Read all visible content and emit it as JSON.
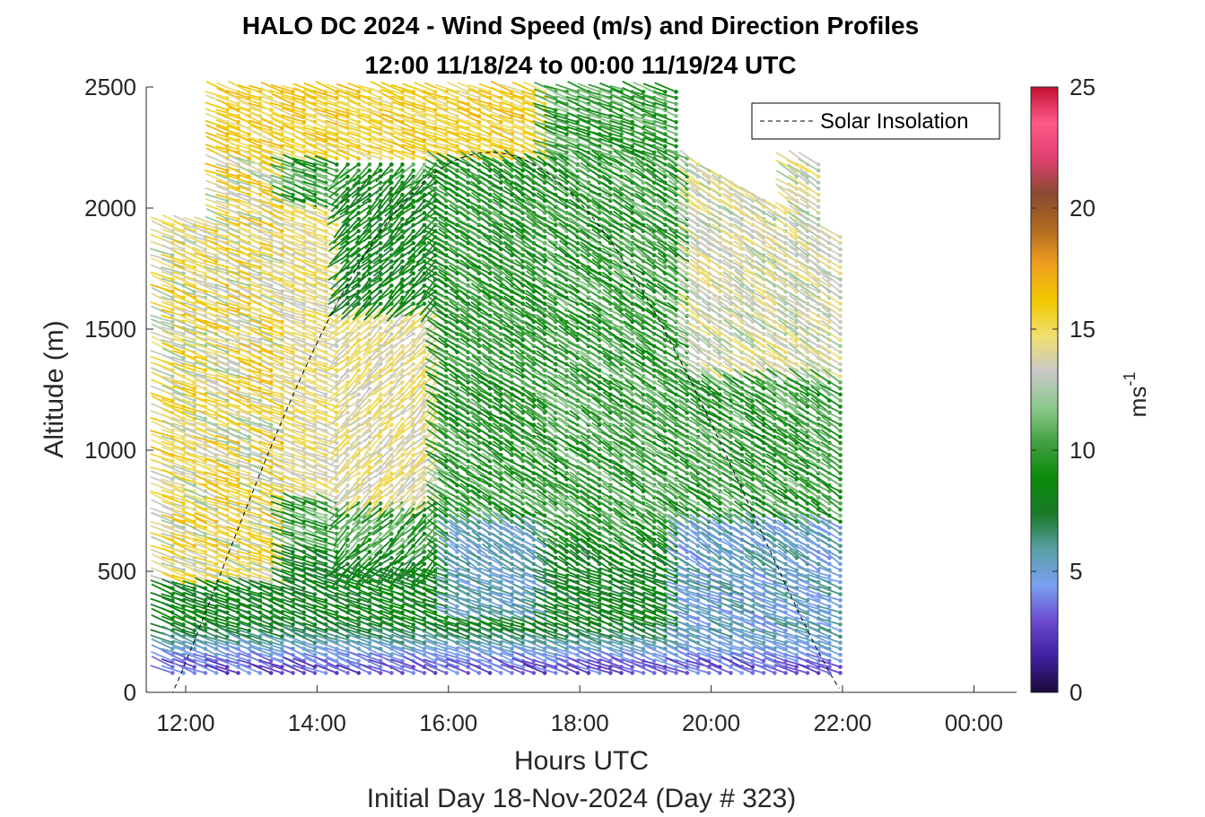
{
  "chart_data": {
    "type": "wind-barb-profile",
    "title_line1": "HALO DC 2024 - Wind Speed (m/s) and Direction Profiles",
    "title_line2": "12:00 11/18/24 to 00:00 11/19/24  UTC",
    "xlabel": "Hours UTC",
    "xlabel2": "Initial Day 18-Nov-2024 (Day # 323)",
    "ylabel": "Altitude (m)",
    "colorbar_label": "ms",
    "colorbar_label_sup": "-1",
    "x_ticks": [
      "12:00",
      "14:00",
      "16:00",
      "18:00",
      "20:00",
      "22:00",
      "00:00"
    ],
    "x_tick_hours": [
      12,
      14,
      16,
      18,
      20,
      22,
      24
    ],
    "xlim": [
      11.4,
      24.65
    ],
    "ylim": [
      0,
      2500
    ],
    "y_ticks": [
      0,
      500,
      1000,
      1500,
      2000,
      2500
    ],
    "colorbar_ticks": [
      0,
      5,
      10,
      15,
      20,
      25
    ],
    "colorbar_lim": [
      0,
      25
    ],
    "legend": {
      "label": "Solar Insolation",
      "placement": "top-right",
      "style": "dashed"
    },
    "solar_insolation": {
      "start_hour": 11.8,
      "end_hour": 22.0,
      "peak_hour": 16.9,
      "peak_altitude": 2230
    },
    "profile_time_range": [
      11.8,
      22.0
    ],
    "profile_interval_minutes": 10,
    "colormap": [
      "#1a0a3a",
      "#4020a0",
      "#6a4ad0",
      "#7aa0f0",
      "#5aa0a8",
      "#1a7a2a",
      "#0a8a0a",
      "#40a040",
      "#8cc88c",
      "#c8c8c8",
      "#f0e070",
      "#f0c800",
      "#f0a020",
      "#b06a20",
      "#8a4a30",
      "#e04070",
      "#ff5a8a",
      "#c01030"
    ],
    "description": "Wind barbs colored by speed: low speeds (purple/blue) near surface, green 6-12 m/s mid-levels, yellow/orange 13-18 m/s aloft; winds mostly from the west-northwest"
  }
}
